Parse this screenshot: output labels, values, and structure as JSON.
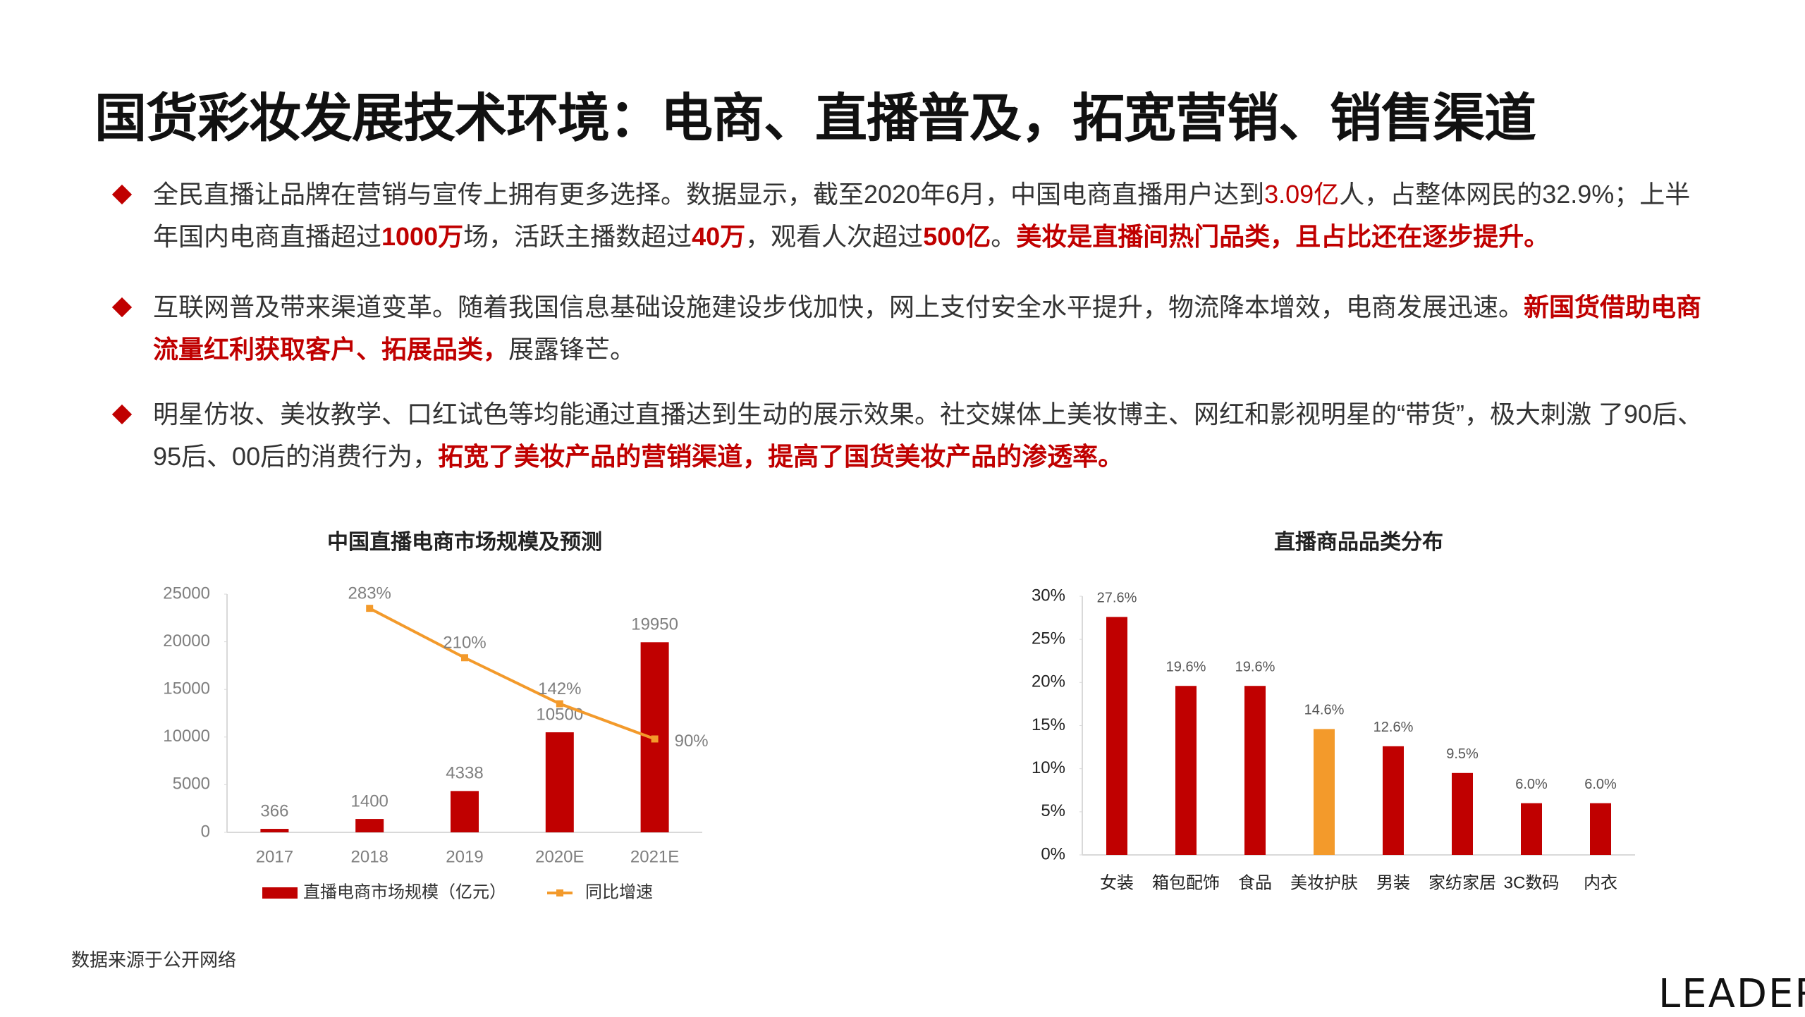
{
  "header": {
    "title": "国货彩妆发展技术环境：电商、直播普及，拓宽营销、销售渠道"
  },
  "bullets": [
    {
      "runs": [
        {
          "text": "全民直播让品牌在营销与宣传上拥有更多选择。数据显示，截至2020年6月，中国电商直播用户达到",
          "color": "#333333"
        },
        {
          "text": "3.09亿",
          "color": "#c00000"
        },
        {
          "text": "人，占整体网民的32.9%；上半年国内电商直播超过",
          "color": "#333333"
        },
        {
          "text": "1000万",
          "color": "#c00000",
          "bold": true
        },
        {
          "text": "场，活跃主播数超过",
          "color": "#333333"
        },
        {
          "text": "40万",
          "color": "#c00000",
          "bold": true
        },
        {
          "text": "，观看人次超过",
          "color": "#333333"
        },
        {
          "text": "500亿",
          "color": "#c00000",
          "bold": true
        },
        {
          "text": "。",
          "color": "#333333"
        },
        {
          "text": "美妆是直播间热门品类，且占比还在逐步提升。",
          "color": "#c00000",
          "bold": true
        }
      ]
    },
    {
      "runs": [
        {
          "text": "互联网普及带来渠道变革。随着我国信息基础设施建设步伐加快，网上支付安全水平提升，物流降本增效，电商发展迅速。",
          "color": "#333333"
        },
        {
          "text": "新国货借助电商流量红利获取客户、拓展品类，",
          "color": "#c00000",
          "bold": true
        },
        {
          "text": "展露锋芒。",
          "color": "#333333"
        }
      ]
    },
    {
      "runs": [
        {
          "text": "明星仿妆、美妆教学、口红试色等均能通过直播达到生动的展示效果。社交媒体上美妆博主、网红和影视明星的“带货”，极大刺激 了90后、95后、00后的消费行为，",
          "color": "#333333"
        },
        {
          "text": "拓宽了美妆产品的营销渠道，提高了国货美妆产品的渗透率。",
          "color": "#c00000",
          "bold": true
        }
      ]
    }
  ],
  "chart_data": [
    {
      "type": "bar_line",
      "title": "中国直播电商市场规模及预测",
      "categories": [
        "2017",
        "2018",
        "2019",
        "2020E",
        "2021E"
      ],
      "ylim": [
        0,
        25000
      ],
      "yticks": [
        0,
        5000,
        10000,
        15000,
        20000,
        25000
      ],
      "y2lim": [
        -48,
        304
      ],
      "series": [
        {
          "name": "直播电商市场规模（亿元）",
          "type": "bar",
          "color": "#c00000",
          "values": [
            366,
            1400,
            4338,
            10500,
            19950
          ]
        },
        {
          "name": "同比增速",
          "type": "line",
          "axis": "y2",
          "color": "#f39a2b",
          "values": [
            null,
            283,
            210,
            142,
            90
          ],
          "value_labels": [
            null,
            "283%",
            "210%",
            "142%",
            "90%"
          ]
        }
      ]
    },
    {
      "type": "bar",
      "title": "直播商品品类分布",
      "categories": [
        "女装",
        "箱包配饰",
        "食品",
        "美妆护肤",
        "男装",
        "家纺家居",
        "3C数码",
        "内衣"
      ],
      "values": [
        27.6,
        19.6,
        19.6,
        14.6,
        12.6,
        9.5,
        6.0,
        6.0
      ],
      "value_labels": [
        "27.6%",
        "19.6%",
        "19.6%",
        "14.6%",
        "12.6%",
        "9.5%",
        "6.0%",
        "6.0%"
      ],
      "colors": [
        "#c00000",
        "#c00000",
        "#c00000",
        "#f39a2b",
        "#c00000",
        "#c00000",
        "#c00000",
        "#c00000"
      ],
      "ylim": [
        0,
        30
      ],
      "yticks": [
        {
          "value": 0,
          "label": "0%"
        },
        {
          "value": 5,
          "label": "5%"
        },
        {
          "value": 10,
          "label": "10%"
        },
        {
          "value": 15,
          "label": "15%"
        },
        {
          "value": 20,
          "label": "20%"
        },
        {
          "value": 25,
          "label": "25%"
        },
        {
          "value": 30,
          "label": "30%"
        }
      ]
    }
  ],
  "footer": {
    "source": "数据来源于公开网络",
    "logo": "LEADER"
  }
}
